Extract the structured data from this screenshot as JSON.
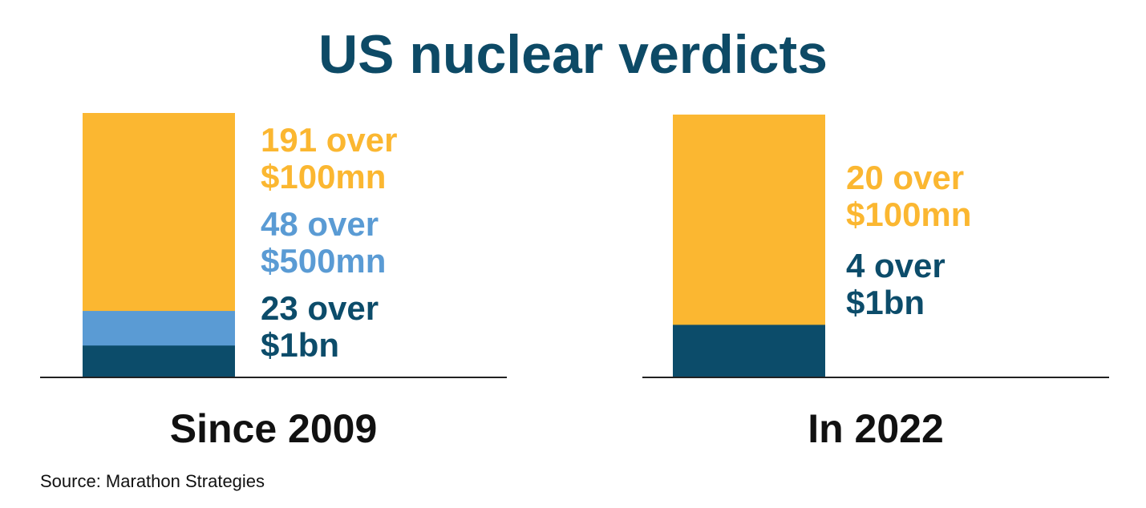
{
  "title": "US nuclear verdicts",
  "source": "Source: Marathon Strategies",
  "colors": {
    "over_100mn": "#fbb731",
    "over_500mn": "#5a9bd4",
    "over_1bn": "#0c4c6a",
    "title": "#0d4a66"
  },
  "chart_data": [
    {
      "type": "bar",
      "stacked": true,
      "panel_label": "Since 2009",
      "segments": [
        {
          "key": "over_1bn",
          "value": 23,
          "line1": "23 over",
          "line2": "$1bn"
        },
        {
          "key": "over_500mn",
          "value": 48,
          "line1": "48 over",
          "line2": "$500mn"
        },
        {
          "key": "over_100mn",
          "value": 191,
          "line1": "191 over",
          "line2": "$100mn"
        }
      ]
    },
    {
      "type": "bar",
      "stacked": true,
      "panel_label": "In 2022",
      "segments": [
        {
          "key": "over_1bn",
          "value": 4,
          "line1": "4 over",
          "line2": "$1bn"
        },
        {
          "key": "over_100mn",
          "value": 20,
          "line1": "20 over",
          "line2": "$100mn"
        }
      ]
    }
  ]
}
